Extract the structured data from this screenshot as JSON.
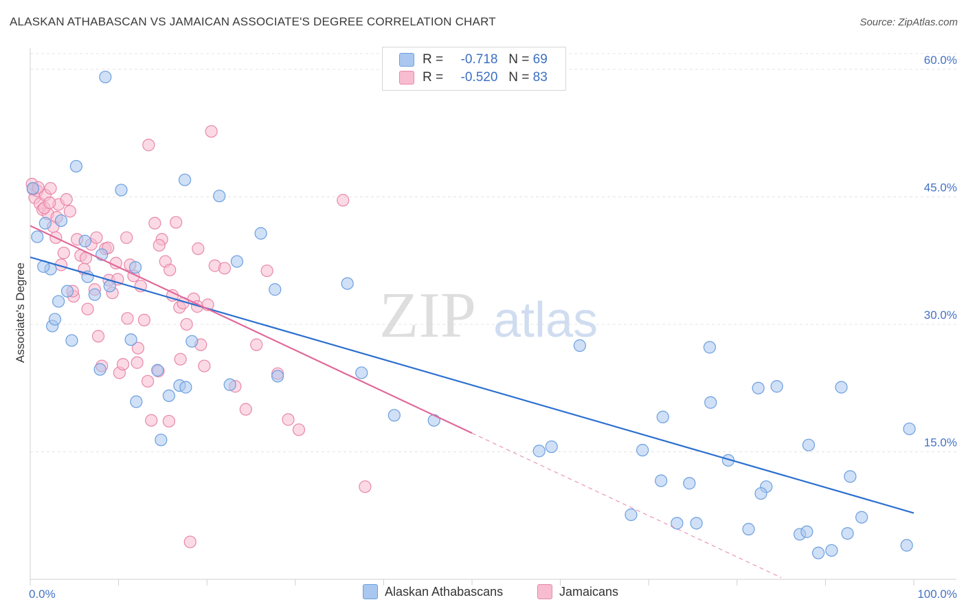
{
  "header": {
    "title": "ALASKAN ATHABASCAN VS JAMAICAN ASSOCIATE'S DEGREE CORRELATION CHART",
    "source": "Source: ZipAtlas.com"
  },
  "watermark": {
    "zip": "ZIP",
    "atlas": "atlas"
  },
  "legend": {
    "r_label": "R =",
    "n_label": "N =",
    "rows": [
      {
        "r": "-0.718",
        "n": "69",
        "color": "#aac7ef",
        "border": "#6a9ee0"
      },
      {
        "r": "-0.520",
        "n": "83",
        "color": "#f7bcd0",
        "border": "#e887a8"
      }
    ]
  },
  "bottom_legend": {
    "items": [
      {
        "label": "Alaskan Athabascans",
        "color": "#aac7ef",
        "border": "#6a9ee0"
      },
      {
        "label": "Jamaicans",
        "color": "#f7bcd0",
        "border": "#e887a8"
      }
    ]
  },
  "chart_data": {
    "type": "scatter",
    "title": "ALASKAN ATHABASCAN VS JAMAICAN ASSOCIATE'S DEGREE CORRELATION CHART",
    "xlabel": "",
    "ylabel": "Associate's Degree",
    "xlim": [
      0,
      100
    ],
    "ylim": [
      0,
      62.5
    ],
    "x_tick_labels": [
      "0.0%",
      "100.0%"
    ],
    "y_ticks": [
      15,
      30,
      45,
      60
    ],
    "y_tick_labels": [
      "15.0%",
      "30.0%",
      "45.0%",
      "60.0%"
    ],
    "grid": true,
    "series": [
      {
        "name": "Alaskan Athabascans",
        "color": "#aac7ef",
        "stroke": "#6a9ee0",
        "line_color": "#2b6fcf",
        "trend": {
          "x": [
            0,
            100
          ],
          "y": [
            37.9,
            7.8
          ],
          "dashed_to": null
        },
        "x": [
          8.5,
          0.3,
          0.8,
          5.2,
          1.7,
          2.3,
          10.3,
          17.5,
          21.4,
          3.5,
          1.5,
          2.5,
          6.2,
          8.1,
          11.9,
          3.2,
          6.5,
          7.3,
          23.4,
          26.1,
          9.0,
          4.2,
          2.8,
          4.7,
          18.3,
          11.4,
          14.4,
          7.9,
          28.0,
          37.5,
          22.6,
          16.9,
          15.7,
          17.6,
          12.0,
          14.8,
          35.9,
          27.7,
          41.2,
          45.7,
          57.6,
          69.3,
          71.6,
          77.0,
          82.4,
          91.8,
          84.5,
          76.9,
          62.2,
          59.0,
          88.1,
          99.5,
          71.4,
          74.6,
          79.0,
          92.8,
          68.0,
          73.2,
          75.4,
          81.3,
          87.1,
          92.5,
          87.9,
          83.3,
          82.7,
          94.1,
          89.2,
          90.7,
          99.2
        ],
        "y": [
          59.1,
          46.0,
          40.3,
          48.6,
          41.9,
          36.5,
          45.8,
          47.0,
          45.1,
          42.2,
          36.8,
          29.8,
          39.8,
          38.2,
          36.7,
          32.7,
          35.6,
          33.5,
          37.4,
          40.7,
          34.5,
          33.9,
          30.6,
          28.1,
          28.0,
          28.2,
          24.6,
          24.7,
          23.9,
          24.3,
          22.9,
          22.8,
          21.6,
          22.6,
          20.9,
          16.4,
          34.8,
          34.1,
          19.3,
          18.7,
          15.1,
          15.2,
          19.1,
          20.8,
          22.5,
          22.6,
          22.7,
          27.3,
          27.5,
          15.6,
          15.8,
          17.7,
          11.6,
          11.3,
          14.0,
          12.1,
          7.6,
          6.6,
          6.6,
          5.9,
          5.3,
          5.4,
          5.6,
          10.9,
          10.1,
          7.3,
          3.1,
          3.4,
          4.0
        ]
      },
      {
        "name": "Jamaicans",
        "color": "#f7bcd0",
        "stroke": "#e887a8",
        "line_color": "#e0699a",
        "trend": {
          "x": [
            0,
            50
          ],
          "y": [
            41.6,
            17.2
          ],
          "dashed_to": [
            85,
            0.2
          ]
        },
        "x": [
          0.2,
          0.5,
          0.8,
          1.1,
          1.4,
          1.7,
          2.0,
          2.3,
          2.6,
          2.9,
          3.2,
          3.5,
          3.8,
          4.1,
          4.5,
          4.9,
          5.3,
          5.7,
          6.1,
          6.5,
          6.9,
          7.3,
          7.7,
          8.1,
          8.5,
          8.9,
          9.3,
          9.7,
          10.1,
          10.5,
          10.9,
          11.3,
          11.7,
          12.1,
          12.5,
          12.9,
          13.3,
          13.7,
          14.1,
          14.5,
          14.9,
          15.3,
          15.7,
          16.1,
          16.5,
          16.9,
          17.3,
          17.7,
          18.1,
          18.5,
          18.9,
          19.3,
          19.7,
          20.1,
          20.5,
          20.9,
          22.0,
          23.2,
          24.4,
          25.6,
          26.8,
          28.0,
          29.2,
          30.4,
          0.3,
          0.9,
          1.6,
          2.2,
          3.0,
          4.8,
          6.3,
          7.5,
          8.8,
          9.9,
          11.0,
          12.2,
          13.4,
          14.6,
          15.8,
          17.0,
          19.0,
          35.4,
          37.9
        ],
        "y": [
          46.5,
          44.9,
          45.7,
          44.2,
          43.5,
          45.2,
          43.0,
          46.0,
          41.5,
          40.2,
          44.1,
          37.0,
          38.4,
          44.7,
          43.3,
          33.3,
          40.0,
          38.1,
          36.5,
          31.8,
          39.4,
          34.1,
          28.6,
          25.1,
          38.9,
          35.2,
          33.7,
          37.2,
          24.3,
          25.3,
          40.2,
          37.0,
          35.7,
          25.5,
          34.5,
          30.5,
          23.3,
          18.7,
          41.9,
          24.5,
          40.0,
          37.4,
          18.6,
          33.4,
          42.0,
          32.0,
          32.5,
          30.0,
          4.4,
          33.0,
          32.1,
          27.6,
          25.1,
          32.3,
          52.7,
          36.9,
          36.6,
          22.7,
          20.0,
          27.6,
          36.3,
          24.2,
          18.8,
          17.6,
          45.9,
          46.1,
          43.7,
          44.3,
          42.6,
          33.9,
          37.8,
          40.2,
          39.0,
          35.3,
          30.7,
          27.2,
          51.1,
          39.3,
          36.4,
          25.9,
          38.9,
          44.6,
          10.9
        ]
      }
    ]
  }
}
